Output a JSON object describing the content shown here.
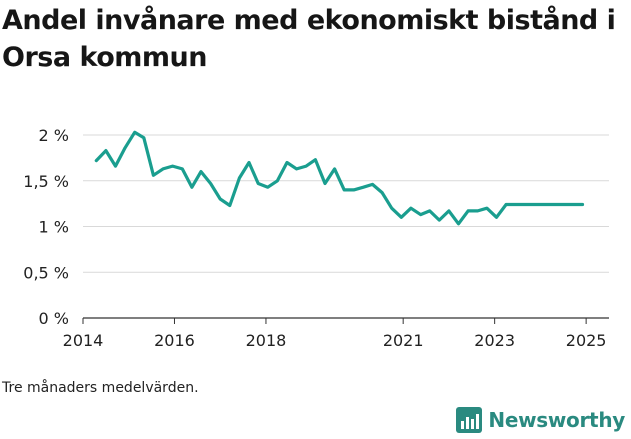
{
  "title": "Andel invånare med ekonomiskt bistånd i Orsa kommun",
  "note": "Tre månaders medelvärden.",
  "brand": {
    "name": "Newsworthy",
    "icon": "newsworthy-chart-logo-icon",
    "color": "#2a8a80"
  },
  "colors": {
    "line": "#1a9e8f",
    "grid": "#d9d9d9",
    "axis": "#333333"
  },
  "chart_data": {
    "type": "line",
    "title": "Andel invånare med ekonomiskt bistånd i Orsa kommun",
    "xlabel": "",
    "ylabel": "",
    "xlim": [
      2014.0,
      2025.5
    ],
    "ylim": [
      0,
      2
    ],
    "y_ticks": [
      0,
      0.5,
      1,
      1.5,
      2
    ],
    "y_tick_labels": [
      "0 %",
      "0,5 %",
      "1 %",
      "1,5 %",
      "2 %"
    ],
    "x_ticks": [
      2014,
      2016,
      2018,
      2021,
      2023,
      2025
    ],
    "x_tick_labels": [
      "2014",
      "2016",
      "2018",
      "2021",
      "2023",
      "2025"
    ],
    "grid": true,
    "legend": "none",
    "series": [
      {
        "x": [
          2014.29,
          2014.5,
          2014.71,
          2014.92,
          2015.13,
          2015.33,
          2015.54,
          2015.75,
          2015.96,
          2016.17,
          2016.38,
          2016.58,
          2016.79,
          2017.0,
          2017.21,
          2017.42,
          2017.63,
          2017.83,
          2018.04,
          2018.25,
          2018.46,
          2018.67,
          2018.88,
          2019.08,
          2019.29,
          2019.5,
          2019.71,
          2019.92,
          2020.13,
          2020.33,
          2020.54,
          2020.75,
          2020.96,
          2021.17,
          2021.38,
          2021.58,
          2021.79,
          2022.0,
          2022.21,
          2022.42,
          2022.63,
          2022.83,
          2023.04,
          2023.25,
          2023.46,
          2023.67,
          2023.88,
          2024.08,
          2024.29,
          2024.5,
          2024.71,
          2024.92
        ],
        "values": [
          1.72,
          1.83,
          1.66,
          1.86,
          2.03,
          1.97,
          1.56,
          1.63,
          1.66,
          1.63,
          1.43,
          1.6,
          1.47,
          1.3,
          1.23,
          1.53,
          1.7,
          1.47,
          1.43,
          1.5,
          1.7,
          1.63,
          1.66,
          1.73,
          1.47,
          1.63,
          1.4,
          1.4,
          1.43,
          1.46,
          1.37,
          1.2,
          1.1,
          1.2,
          1.13,
          1.17,
          1.07,
          1.17,
          1.03,
          1.17,
          1.17,
          1.2,
          1.1,
          1.24,
          1.24,
          1.24,
          1.24,
          1.24,
          1.24,
          1.24,
          1.24,
          1.24
        ]
      }
    ]
  }
}
